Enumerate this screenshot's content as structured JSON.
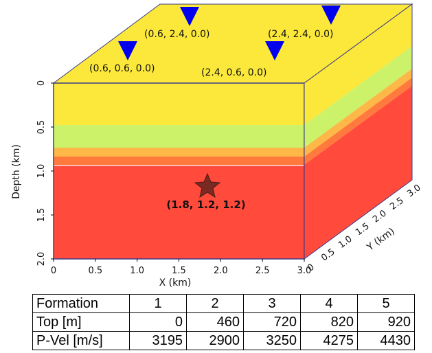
{
  "model": {
    "depth_axis": {
      "label": "Depth (km)",
      "ticks": [
        "0",
        "0.5",
        "1.0",
        "1.5",
        "2.0"
      ]
    },
    "x_axis": {
      "label": "X (km)",
      "ticks": [
        "0",
        "0.5",
        "1.0",
        "1.5",
        "2.0",
        "2.5",
        "3.0"
      ]
    },
    "y_axis": {
      "label": "Y (km)",
      "ticks": [
        "0",
        "0.5",
        "1.0",
        "1.5",
        "2.0",
        "2.5",
        "3.0"
      ]
    },
    "stations": [
      {
        "label": "(0.6, 2.4, 0.0)"
      },
      {
        "label": "(2.4, 2.4, 0.0)"
      },
      {
        "label": "(0.6, 0.6, 0.0)"
      },
      {
        "label": "(2.4, 0.6, 0.0)"
      }
    ],
    "source": {
      "label": "(1.8, 1.2, 1.2)"
    }
  },
  "table": {
    "header": [
      "Formation",
      "1",
      "2",
      "3",
      "4",
      "5"
    ],
    "rows": [
      [
        "Top [m]",
        "0",
        "460",
        "720",
        "820",
        "920"
      ],
      [
        "P-Vel [m/s]",
        "3195",
        "2900",
        "3250",
        "4275",
        "4430"
      ]
    ]
  }
}
